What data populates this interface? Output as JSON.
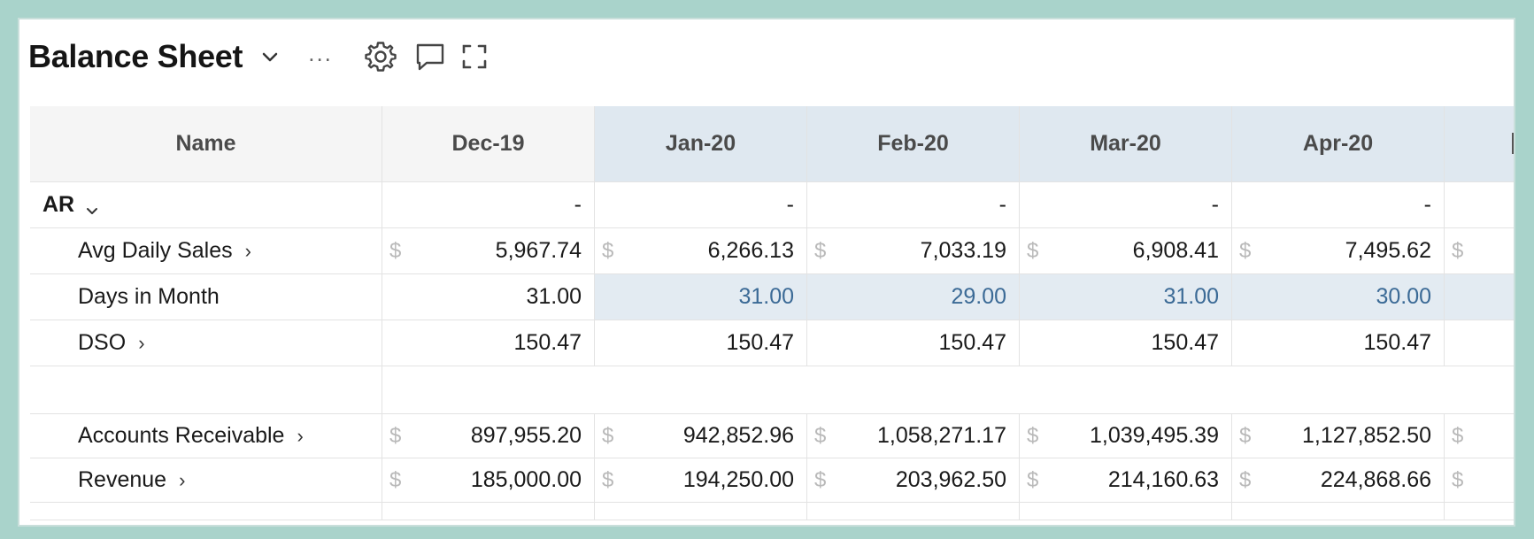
{
  "header": {
    "title": "Balance Sheet",
    "more_label": "..."
  },
  "table": {
    "columns": {
      "name": "Name",
      "months": [
        "Dec-19",
        "Jan-20",
        "Feb-20",
        "Mar-20",
        "Apr-20"
      ]
    },
    "currency_symbol": "$",
    "rows": [
      {
        "label": "AR",
        "values": [
          "-",
          "-",
          "-",
          "-",
          "-"
        ]
      },
      {
        "label": "Avg Daily Sales",
        "values": [
          "5,967.74",
          "6,266.13",
          "7,033.19",
          "6,908.41",
          "7,495.62"
        ]
      },
      {
        "label": "Days in Month",
        "values": [
          "31.00",
          "31.00",
          "29.00",
          "31.00",
          "30.00"
        ]
      },
      {
        "label": "DSO",
        "values": [
          "150.47",
          "150.47",
          "150.47",
          "150.47",
          "150.47"
        ]
      },
      {
        "label": "Accounts Receivable",
        "values": [
          "897,955.20",
          "942,852.96",
          "1,058,271.17",
          "1,039,495.39",
          "1,127,852.50"
        ]
      },
      {
        "label": "Revenue",
        "values": [
          "185,000.00",
          "194,250.00",
          "203,962.50",
          "214,160.63",
          "224,868.66"
        ]
      }
    ]
  },
  "colors": {
    "frame": "#a9d3cb",
    "forecast_header": "#dfe8f0",
    "highlight_row": "#e3ebf2",
    "editable_value": "#3b6a96"
  }
}
